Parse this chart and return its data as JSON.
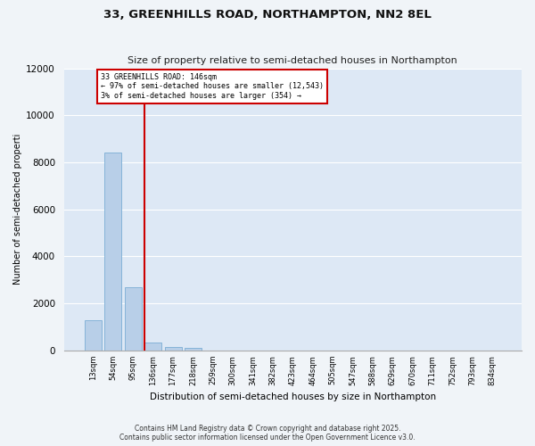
{
  "title": "33, GREENHILLS ROAD, NORTHAMPTON, NN2 8EL",
  "subtitle": "Size of property relative to semi-detached houses in Northampton",
  "xlabel": "Distribution of semi-detached houses by size in Northampton",
  "ylabel": "Number of semi-detached properti",
  "categories": [
    "13sqm",
    "54sqm",
    "95sqm",
    "136sqm",
    "177sqm",
    "218sqm",
    "259sqm",
    "300sqm",
    "341sqm",
    "382sqm",
    "423sqm",
    "464sqm",
    "505sqm",
    "547sqm",
    "588sqm",
    "629sqm",
    "670sqm",
    "711sqm",
    "752sqm",
    "793sqm",
    "834sqm"
  ],
  "values": [
    1300,
    8400,
    2700,
    350,
    150,
    100,
    0,
    0,
    0,
    0,
    0,
    0,
    0,
    0,
    0,
    0,
    0,
    0,
    0,
    0,
    0
  ],
  "bar_color": "#b8cfe8",
  "bar_edge_color": "#7aadd4",
  "vline_color": "#cc0000",
  "annotation_title": "33 GREENHILLS ROAD: 146sqm",
  "annotation_line1": "← 97% of semi-detached houses are smaller (12,543)",
  "annotation_line2": "3% of semi-detached houses are larger (354) →",
  "annotation_box_color": "#cc0000",
  "ylim": [
    0,
    12000
  ],
  "yticks": [
    0,
    2000,
    4000,
    6000,
    8000,
    10000,
    12000
  ],
  "fig_background": "#f0f4f8",
  "plot_background": "#dde8f5",
  "grid_color": "#ffffff",
  "footer_line1": "Contains HM Land Registry data © Crown copyright and database right 2025.",
  "footer_line2": "Contains public sector information licensed under the Open Government Licence v3.0."
}
